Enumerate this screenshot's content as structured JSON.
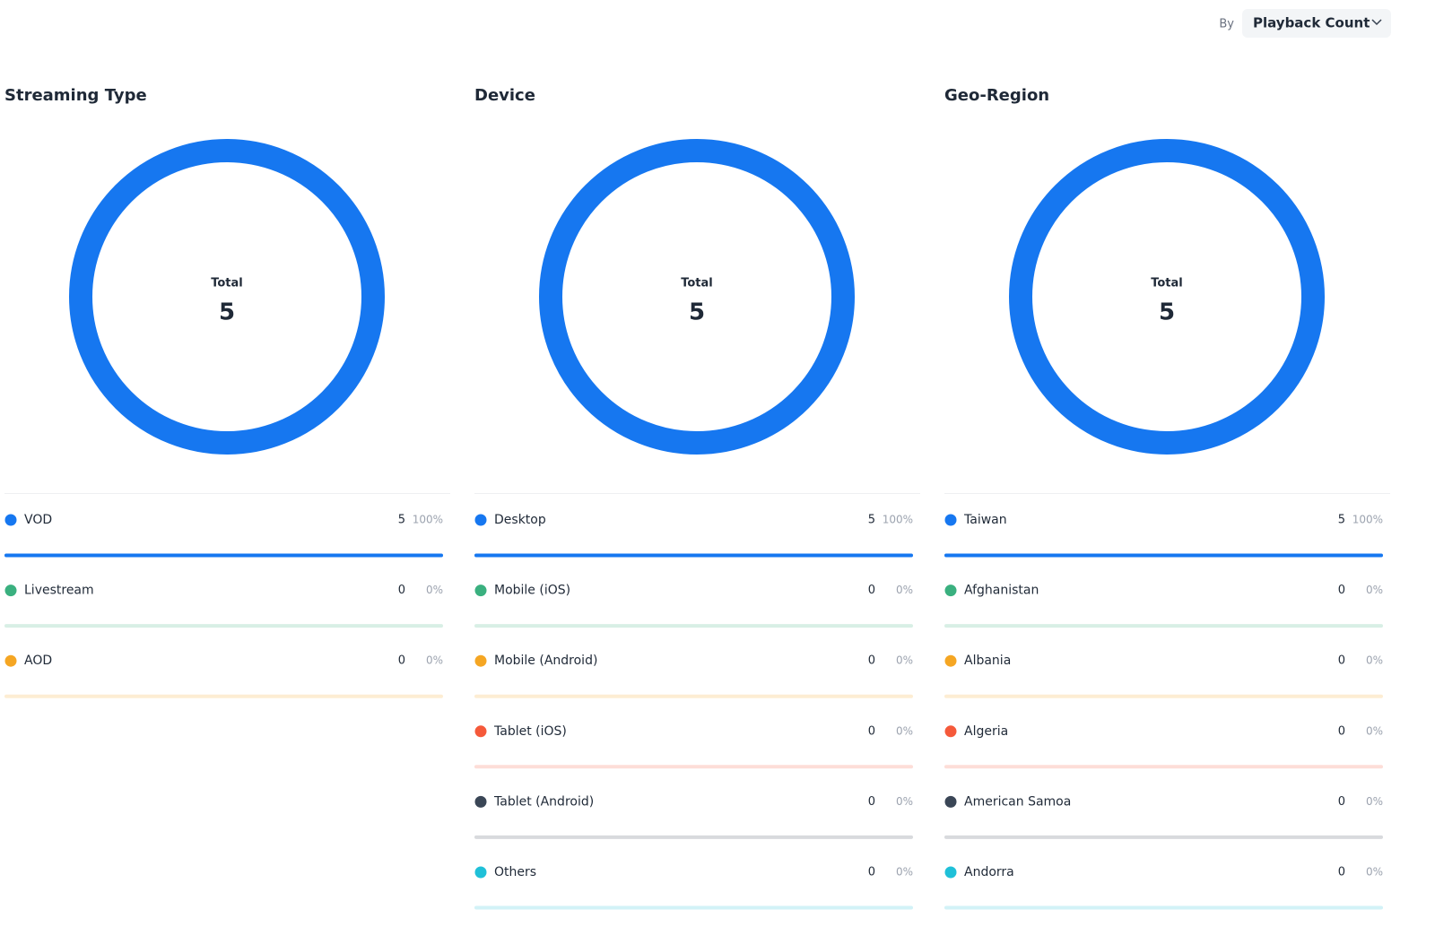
{
  "filter": {
    "label": "By",
    "value": "Playback Count"
  },
  "chart_data": [
    {
      "type": "donut",
      "title": "Streaming Type",
      "center_label": "Total",
      "total": 5,
      "categories": [
        "VOD",
        "Livestream",
        "AOD"
      ],
      "values": [
        5,
        0,
        0
      ],
      "shares": [
        100,
        0,
        0
      ],
      "share_labels": [
        "100%",
        "0%",
        "0%"
      ],
      "colors": [
        "#1677f0",
        "#3ab07f",
        "#f5a623"
      ]
    },
    {
      "type": "donut",
      "title": "Device",
      "center_label": "Total",
      "total": 5,
      "categories": [
        "Desktop",
        "Mobile (iOS)",
        "Mobile (Android)",
        "Tablet (iOS)",
        "Tablet (Android)",
        "Others"
      ],
      "values": [
        5,
        0,
        0,
        0,
        0,
        0
      ],
      "shares": [
        100,
        0,
        0,
        0,
        0,
        0
      ],
      "share_labels": [
        "100%",
        "0%",
        "0%",
        "0%",
        "0%",
        "0%"
      ],
      "colors": [
        "#1677f0",
        "#3ab07f",
        "#f5a623",
        "#f5593a",
        "#3a4656",
        "#1fc0d8"
      ]
    },
    {
      "type": "donut",
      "title": "Geo-Region",
      "center_label": "Total",
      "total": 5,
      "categories": [
        "Taiwan",
        "Afghanistan",
        "Albania",
        "Algeria",
        "American Samoa",
        "Andorra"
      ],
      "values": [
        5,
        0,
        0,
        0,
        0,
        0
      ],
      "shares": [
        100,
        0,
        0,
        0,
        0,
        0
      ],
      "share_labels": [
        "100%",
        "0%",
        "0%",
        "0%",
        "0%",
        "0%"
      ],
      "colors": [
        "#1677f0",
        "#3ab07f",
        "#f5a623",
        "#f5593a",
        "#3a4656",
        "#1fc0d8"
      ]
    }
  ]
}
